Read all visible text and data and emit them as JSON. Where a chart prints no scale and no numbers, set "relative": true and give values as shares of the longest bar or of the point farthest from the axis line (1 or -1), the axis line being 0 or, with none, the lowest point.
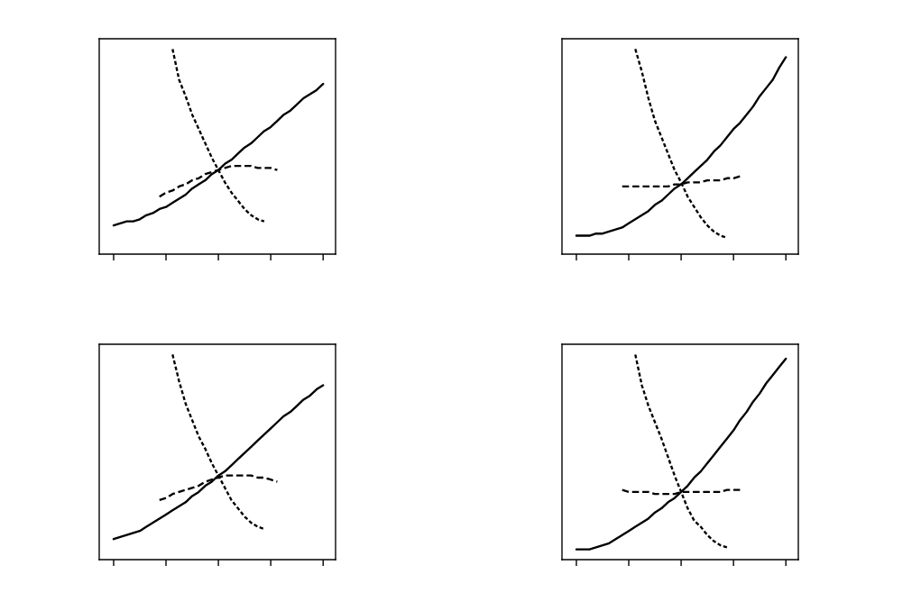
{
  "chart_data": [
    {
      "type": "line",
      "relative": true,
      "categories": [
        null,
        null,
        null,
        null,
        null,
        null,
        null,
        null,
        null,
        null,
        null,
        null,
        null,
        null,
        null,
        null,
        null,
        null,
        null,
        null,
        null,
        null,
        null,
        null,
        null,
        null,
        null,
        null,
        null,
        null,
        null,
        null,
        null
      ],
      "series": [
        {
          "color": "#000000",
          "line_style": "solid",
          "values": [
            0.14,
            0.15,
            0.16,
            0.16,
            0.17,
            0.19,
            0.2,
            0.22,
            0.23,
            0.25,
            0.27,
            0.29,
            0.32,
            0.34,
            0.36,
            0.39,
            0.41,
            0.44,
            0.46,
            0.49,
            0.52,
            0.54,
            0.57,
            0.6,
            0.62,
            0.65,
            0.68,
            0.7,
            0.73,
            0.76,
            0.78,
            0.8,
            0.83
          ]
        },
        {
          "color": "#000000",
          "line_style": "dashed",
          "values": [
            null,
            null,
            null,
            null,
            null,
            null,
            null,
            0.28,
            0.3,
            0.31,
            0.33,
            0.34,
            0.36,
            0.37,
            0.39,
            0.4,
            0.41,
            0.42,
            0.43,
            0.43,
            0.43,
            0.43,
            0.42,
            0.42,
            0.42,
            0.41,
            null,
            null,
            null,
            null,
            null,
            null,
            null
          ]
        },
        {
          "color": "#000000",
          "line_style": "dotted",
          "values": [
            null,
            null,
            null,
            null,
            null,
            null,
            null,
            null,
            null,
            1.0,
            0.85,
            0.77,
            0.68,
            0.61,
            0.54,
            0.47,
            0.41,
            0.35,
            0.3,
            0.26,
            0.22,
            0.19,
            0.17,
            0.16,
            null,
            null,
            null,
            null,
            null,
            null,
            null,
            null,
            null
          ]
        }
      ]
    },
    {
      "type": "line",
      "relative": true,
      "categories": [
        null,
        null,
        null,
        null,
        null,
        null,
        null,
        null,
        null,
        null,
        null,
        null,
        null,
        null,
        null,
        null,
        null,
        null,
        null,
        null,
        null,
        null,
        null,
        null,
        null,
        null,
        null,
        null,
        null,
        null,
        null,
        null,
        null
      ],
      "series": [
        {
          "color": "#000000",
          "line_style": "solid",
          "values": [
            0.09,
            0.09,
            0.09,
            0.1,
            0.1,
            0.11,
            0.12,
            0.13,
            0.15,
            0.17,
            0.19,
            0.21,
            0.24,
            0.26,
            0.29,
            0.32,
            0.34,
            0.37,
            0.4,
            0.43,
            0.46,
            0.5,
            0.53,
            0.57,
            0.61,
            0.64,
            0.68,
            0.72,
            0.77,
            0.81,
            0.85,
            0.91,
            0.96
          ]
        },
        {
          "color": "#000000",
          "line_style": "dashed",
          "values": [
            null,
            null,
            null,
            null,
            null,
            null,
            null,
            0.33,
            0.33,
            0.33,
            0.33,
            0.33,
            0.33,
            0.33,
            0.33,
            0.34,
            0.34,
            0.35,
            0.35,
            0.35,
            0.36,
            0.36,
            0.36,
            0.37,
            0.37,
            0.38,
            null,
            null,
            null,
            null,
            null,
            null,
            null
          ]
        },
        {
          "color": "#000000",
          "line_style": "dotted",
          "values": [
            null,
            null,
            null,
            null,
            null,
            null,
            null,
            null,
            null,
            1.0,
            0.89,
            0.76,
            0.65,
            0.57,
            0.49,
            0.41,
            0.35,
            0.28,
            0.23,
            0.18,
            0.14,
            0.11,
            0.09,
            0.08,
            null,
            null,
            null,
            null,
            null,
            null,
            null,
            null,
            null
          ]
        }
      ]
    },
    {
      "type": "line",
      "relative": true,
      "categories": [
        null,
        null,
        null,
        null,
        null,
        null,
        null,
        null,
        null,
        null,
        null,
        null,
        null,
        null,
        null,
        null,
        null,
        null,
        null,
        null,
        null,
        null,
        null,
        null,
        null,
        null,
        null,
        null,
        null,
        null,
        null,
        null,
        null
      ],
      "series": [
        {
          "color": "#000000",
          "line_style": "solid",
          "values": [
            0.1,
            0.11,
            0.12,
            0.13,
            0.14,
            0.16,
            0.18,
            0.2,
            0.22,
            0.24,
            0.26,
            0.28,
            0.31,
            0.33,
            0.36,
            0.38,
            0.41,
            0.43,
            0.46,
            0.49,
            0.52,
            0.55,
            0.58,
            0.61,
            0.64,
            0.67,
            0.7,
            0.72,
            0.75,
            0.78,
            0.8,
            0.83,
            0.85
          ]
        },
        {
          "color": "#000000",
          "line_style": "dashed",
          "values": [
            null,
            null,
            null,
            null,
            null,
            null,
            null,
            0.29,
            0.3,
            0.32,
            0.33,
            0.34,
            0.35,
            0.36,
            0.38,
            0.39,
            0.4,
            0.41,
            0.41,
            0.41,
            0.41,
            0.41,
            0.4,
            0.4,
            0.39,
            0.38,
            null,
            null,
            null,
            null,
            null,
            null,
            null
          ]
        },
        {
          "color": "#000000",
          "line_style": "dotted",
          "values": [
            null,
            null,
            null,
            null,
            null,
            null,
            null,
            null,
            null,
            1.0,
            0.87,
            0.76,
            0.68,
            0.6,
            0.54,
            0.47,
            0.41,
            0.35,
            0.29,
            0.25,
            0.21,
            0.18,
            0.16,
            0.15,
            null,
            null,
            null,
            null,
            null,
            null,
            null,
            null,
            null
          ]
        }
      ]
    },
    {
      "type": "line",
      "relative": true,
      "categories": [
        null,
        null,
        null,
        null,
        null,
        null,
        null,
        null,
        null,
        null,
        null,
        null,
        null,
        null,
        null,
        null,
        null,
        null,
        null,
        null,
        null,
        null,
        null,
        null,
        null,
        null,
        null,
        null,
        null,
        null,
        null,
        null,
        null
      ],
      "series": [
        {
          "color": "#000000",
          "line_style": "solid",
          "values": [
            0.05,
            0.05,
            0.05,
            0.06,
            0.07,
            0.08,
            0.1,
            0.12,
            0.14,
            0.16,
            0.18,
            0.2,
            0.23,
            0.25,
            0.28,
            0.3,
            0.33,
            0.36,
            0.4,
            0.43,
            0.47,
            0.51,
            0.55,
            0.59,
            0.63,
            0.68,
            0.72,
            0.77,
            0.81,
            0.86,
            0.9,
            0.94,
            0.98
          ]
        },
        {
          "color": "#000000",
          "line_style": "dashed",
          "values": [
            null,
            null,
            null,
            null,
            null,
            null,
            null,
            0.34,
            0.33,
            0.33,
            0.33,
            0.33,
            0.32,
            0.32,
            0.32,
            0.32,
            0.33,
            0.33,
            0.33,
            0.33,
            0.33,
            0.33,
            0.33,
            0.34,
            0.34,
            0.34,
            null,
            null,
            null,
            null,
            null,
            null,
            null
          ]
        },
        {
          "color": "#000000",
          "line_style": "dotted",
          "values": [
            null,
            null,
            null,
            null,
            null,
            null,
            null,
            null,
            null,
            1.0,
            0.85,
            0.75,
            0.67,
            0.59,
            0.5,
            0.41,
            0.33,
            0.25,
            0.19,
            0.16,
            0.12,
            0.09,
            0.07,
            0.06,
            null,
            null,
            null,
            null,
            null,
            null,
            null,
            null,
            null
          ]
        }
      ]
    }
  ]
}
